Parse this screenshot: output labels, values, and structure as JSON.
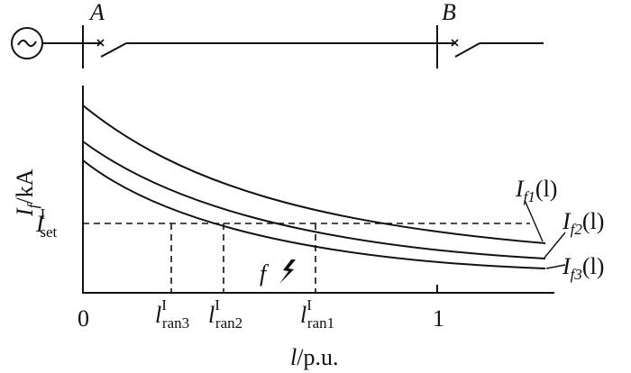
{
  "buses": {
    "a": "A",
    "b": "B"
  },
  "y_axis": {
    "main": "I",
    "sub": "f",
    "rest": "/kA"
  },
  "x_axis": {
    "main": "l",
    "rest": "/p.u.",
    "ticks": [
      "0",
      "1"
    ]
  },
  "setting": {
    "main": "I",
    "sub": "set",
    "sup": "I"
  },
  "reaches": [
    {
      "main": "l",
      "sub": "ran3",
      "sup": "I"
    },
    {
      "main": "l",
      "sub": "ran2",
      "sup": "I"
    },
    {
      "main": "l",
      "sub": "ran1",
      "sup": "I"
    }
  ],
  "fault": "f",
  "curves": [
    {
      "main": "I",
      "sub": "f1",
      "rest": "(l)"
    },
    {
      "main": "I",
      "sub": "f2",
      "rest": "(l)"
    },
    {
      "main": "I",
      "sub": "f3",
      "rest": "(l)"
    }
  ]
}
